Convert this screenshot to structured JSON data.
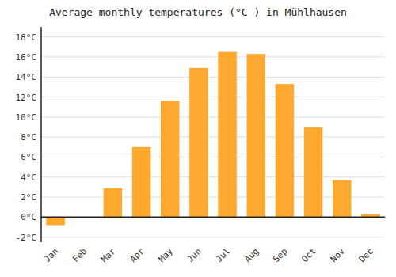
{
  "chart_data": {
    "type": "bar",
    "title": "Average monthly temperatures (°C ) in Mühlhausen",
    "categories": [
      "Jan",
      "Feb",
      "Mar",
      "Apr",
      "May",
      "Jun",
      "Jul",
      "Aug",
      "Sep",
      "Oct",
      "Nov",
      "Dec"
    ],
    "values": [
      -0.8,
      0.0,
      2.9,
      7.0,
      11.6,
      14.9,
      16.5,
      16.3,
      13.3,
      9.0,
      3.7,
      0.3
    ],
    "color": "#FFA930",
    "ylim": [
      -2.5,
      19
    ],
    "yticks": [
      {
        "value": -2,
        "label": "-2°C"
      },
      {
        "value": 0,
        "label": "0°C"
      },
      {
        "value": 2,
        "label": "2°C"
      },
      {
        "value": 4,
        "label": "4°C"
      },
      {
        "value": 6,
        "label": "6°C"
      },
      {
        "value": 8,
        "label": "8°C"
      },
      {
        "value": 10,
        "label": "10°C"
      },
      {
        "value": 12,
        "label": "12°C"
      },
      {
        "value": 14,
        "label": "14°C"
      },
      {
        "value": 16,
        "label": "16°C"
      },
      {
        "value": 18,
        "label": "18°C"
      }
    ],
    "grid": true
  }
}
